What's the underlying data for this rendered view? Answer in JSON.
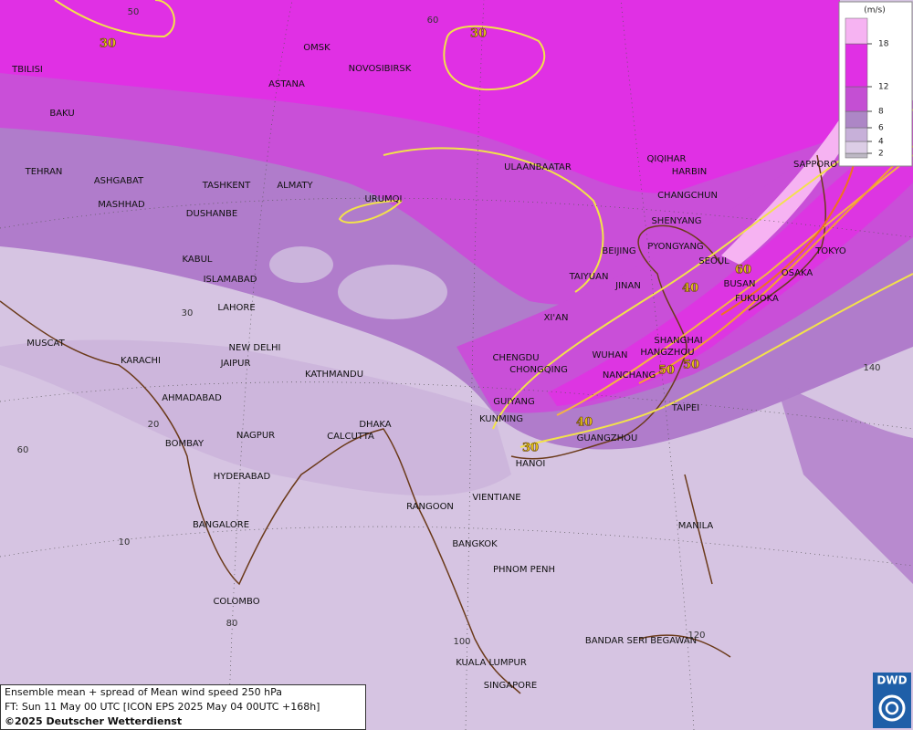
{
  "map": {
    "cities": [
      "TBILISI",
      "BAKU",
      "TEHRAN",
      "ASHGABAT",
      "MASHHAD",
      "TASHKENT",
      "ALMATY",
      "DUSHANBE",
      "URUMQI",
      "OMSK",
      "NOVOSIBIRSK",
      "ASTANA",
      "ULAANBAATAR",
      "QIQIHAR",
      "HARBIN",
      "CHANGCHUN",
      "SHENYANG",
      "PYONGYANG",
      "SEOUL",
      "BEIJING",
      "TAIYUAN",
      "JINAN",
      "BUSAN",
      "FUKUOKA",
      "OSAKA",
      "TOKYO",
      "SAPPORO",
      "KABUL",
      "ISLAMABAD",
      "LAHORE",
      "XI'AN",
      "CHENGDU",
      "CHONGQING",
      "WUHAN",
      "SHANGHAI",
      "HANGZHOU",
      "NANCHANG",
      "GUIYANG",
      "TAIPEI",
      "KUNMING",
      "GUANGZHOU",
      "MUSCAT",
      "KARACHI",
      "NEW DELHI",
      "JAIPUR",
      "KATHMANDU",
      "AHMADABAD",
      "DHAKA",
      "CALCUTTA",
      "NAGPUR",
      "BOMBAY",
      "HANOI",
      "HYDERABAD",
      "VIENTIANE",
      "RANGOON",
      "BANGALORE",
      "MANILA",
      "BANGKOK",
      "PHNOM PENH",
      "COLOMBO",
      "BANDAR SERI BEGAWAN",
      "KUALA LUMPUR",
      "SINGAPORE"
    ],
    "contour_labels": [
      30,
      30,
      30,
      40,
      40,
      50,
      50,
      60
    ],
    "graticule_labels": [
      50,
      60,
      30,
      20,
      10,
      60,
      80,
      100,
      120,
      140
    ]
  },
  "legend": {
    "unit": "(m/s)",
    "ticks": [
      2,
      4,
      6,
      8,
      12,
      18
    ],
    "colors": [
      "#bdb8c4",
      "#dccde6",
      "#c7b0d9",
      "#ad86c6",
      "#c44fd3",
      "#e030e4",
      "#f6b3f2"
    ]
  },
  "caption": {
    "line1": "Ensemble mean + spread of Mean wind speed 250 hPa",
    "line2": "FT: Sun 11 May 00 UTC [ICON EPS 2025 May 04 00UTC +168h]",
    "line3": "©2025 Deutscher Wetterdienst"
  },
  "logo": "DWD"
}
